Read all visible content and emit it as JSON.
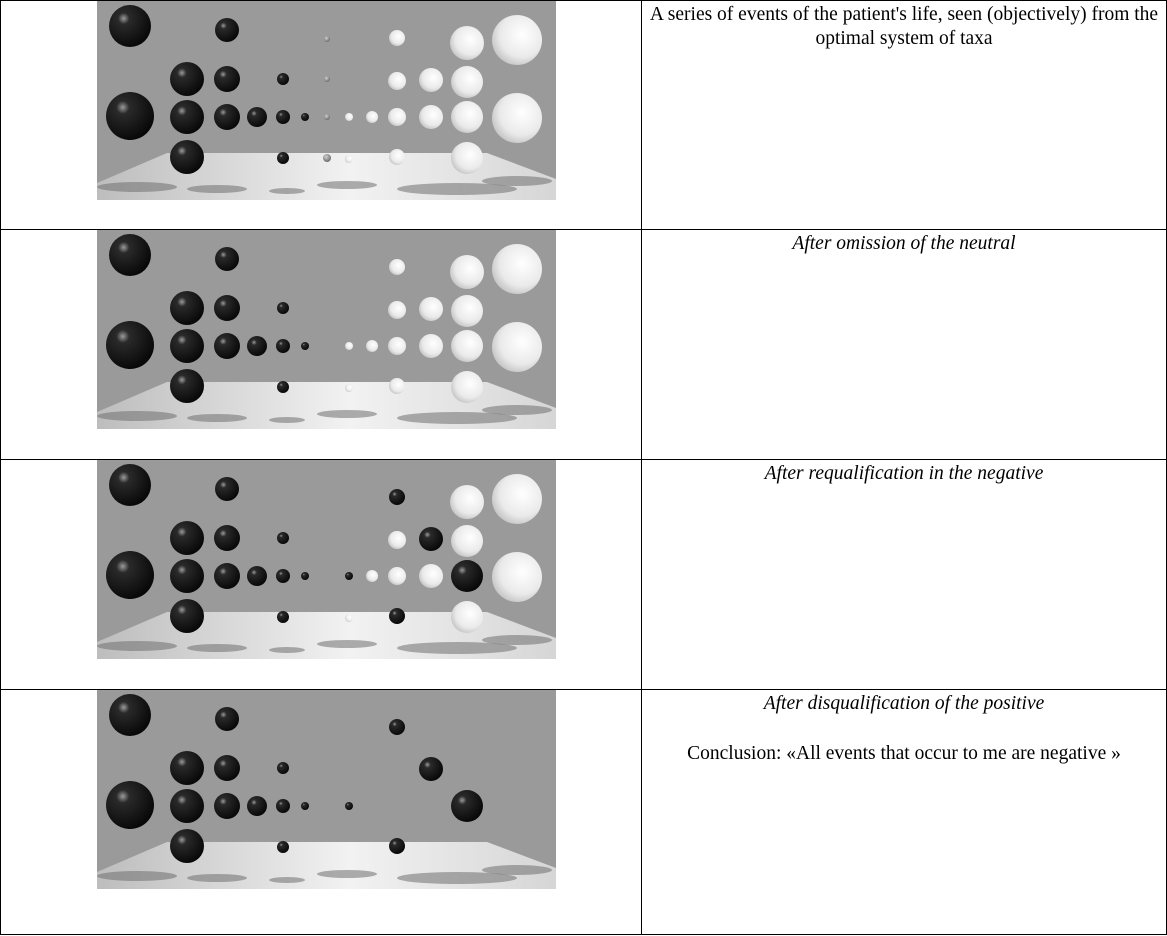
{
  "rows": [
    {
      "caption": "A series of events of the patient's life, seen (objectively) from the optimal system of taxa",
      "caption_style": "normal",
      "image": {
        "variant": "full",
        "description_icon": "sphere-render"
      }
    },
    {
      "caption": "After omission of the neutral",
      "caption_style": "italic",
      "image": {
        "variant": "no-neutral",
        "description_icon": "sphere-render"
      }
    },
    {
      "caption": "After requalification in the negative",
      "caption_style": "italic",
      "image": {
        "variant": "requalified",
        "description_icon": "sphere-render"
      }
    },
    {
      "caption": "After disqualification of the positive",
      "caption_style": "italic",
      "conclusion": "Conclusion: «All events that occur to me are negative »",
      "image": {
        "variant": "disqualified",
        "description_icon": "sphere-render"
      }
    }
  ],
  "colors": {
    "background_gray": "#9a9a9a",
    "floor_light": "#f2f2f2",
    "dark_sphere": "#050505",
    "light_sphere": "#ffffff",
    "border": "#000000"
  }
}
